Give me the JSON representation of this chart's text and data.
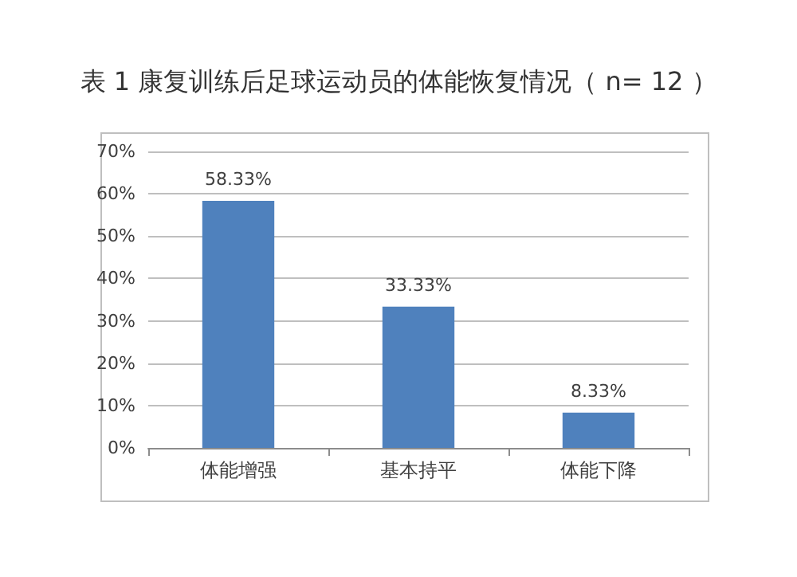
{
  "chart_data": {
    "type": "bar",
    "title": "表 1 康复训练后足球运动员的体能恢复情况（ n= 12 ）",
    "categories": [
      "体能增强",
      "基本持平",
      "体能下降"
    ],
    "values": [
      58.33,
      33.33,
      8.33
    ],
    "value_labels": [
      "58.33%",
      "33.33%",
      "8.33%"
    ],
    "color": "#4f81bd",
    "ylim": [
      0,
      70
    ],
    "yticks": [
      {
        "value": 0,
        "label": "0%"
      },
      {
        "value": 10,
        "label": "10%"
      },
      {
        "value": 20,
        "label": "20%"
      },
      {
        "value": 30,
        "label": "30%"
      },
      {
        "value": 40,
        "label": "40%"
      },
      {
        "value": 50,
        "label": "50%"
      },
      {
        "value": 60,
        "label": "60%"
      },
      {
        "value": 70,
        "label": "70%"
      }
    ],
    "grid": "y"
  }
}
